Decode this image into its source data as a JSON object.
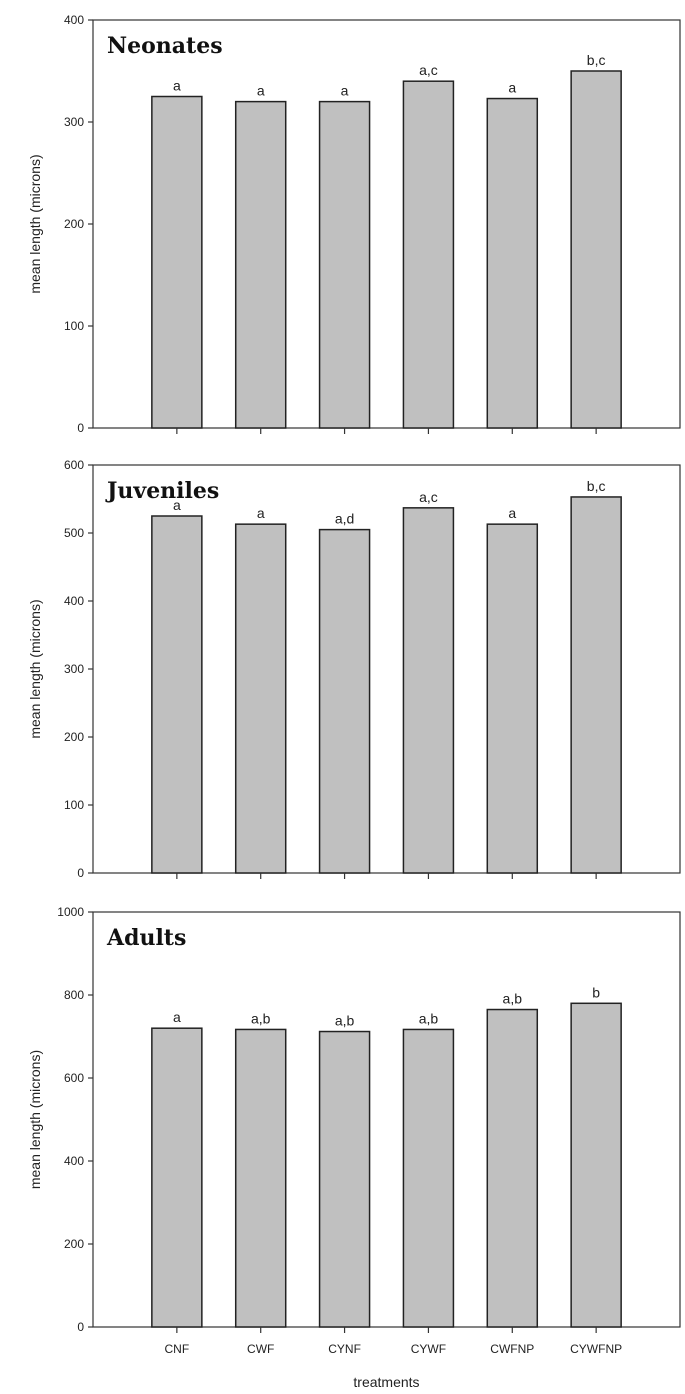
{
  "chart_data": [
    {
      "type": "bar",
      "title": "Neonates",
      "ylabel": "mean length (microns)",
      "xlabel": "",
      "ylim": [
        0,
        400
      ],
      "yticks": [
        0,
        100,
        200,
        300,
        400
      ],
      "categories": [
        "CNF",
        "CWF",
        "CYNF",
        "CYWF",
        "CWFNP",
        "CYWFNP"
      ],
      "show_category_labels": false,
      "values": [
        325,
        320,
        320,
        340,
        323,
        350
      ],
      "annotations": [
        "a",
        "a",
        "a",
        "a,c",
        "a",
        "b,c"
      ],
      "bar_color": "#c0c0c0"
    },
    {
      "type": "bar",
      "title": "Juveniles",
      "ylabel": "mean length (microns)",
      "xlabel": "",
      "ylim": [
        0,
        600
      ],
      "yticks": [
        0,
        100,
        200,
        300,
        400,
        500,
        600
      ],
      "categories": [
        "CNF",
        "CWF",
        "CYNF",
        "CYWF",
        "CWFNP",
        "CYWFNP"
      ],
      "show_category_labels": false,
      "values": [
        525,
        513,
        505,
        537,
        513,
        553
      ],
      "annotations": [
        "a",
        "a",
        "a,d",
        "a,c",
        "a",
        "b,c"
      ],
      "bar_color": "#c0c0c0"
    },
    {
      "type": "bar",
      "title": "Adults",
      "ylabel": "mean length (microns)",
      "xlabel": "treatments",
      "ylim": [
        0,
        1000
      ],
      "yticks": [
        0,
        200,
        400,
        600,
        800,
        1000
      ],
      "categories": [
        "CNF",
        "CWF",
        "CYNF",
        "CYWF",
        "CWFNP",
        "CYWFNP"
      ],
      "show_category_labels": true,
      "values": [
        720,
        717,
        712,
        717,
        765,
        780
      ],
      "annotations": [
        "a",
        "a,b",
        "a,b",
        "a,b",
        "a,b",
        "b"
      ],
      "bar_color": "#c0c0c0"
    }
  ]
}
